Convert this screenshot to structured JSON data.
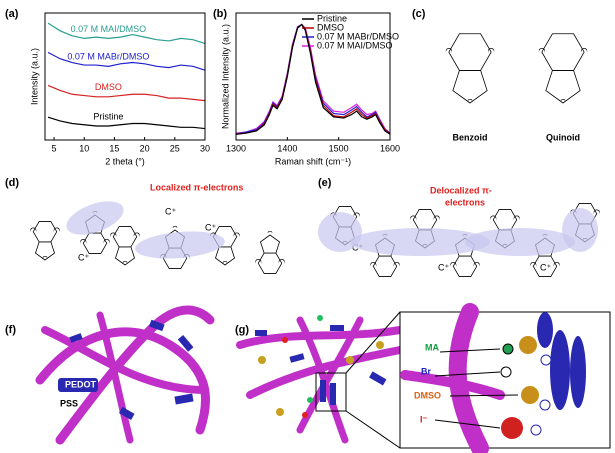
{
  "panel_labels": [
    "(a)",
    "(b)",
    "(c)",
    "(d)",
    "(e)",
    "(f)",
    "(g)"
  ],
  "chart_data": [
    {
      "type": "line",
      "xlabel": "2 theta (°)",
      "ylabel": "Intensity (a.u.)",
      "xlim": [
        3.5,
        30
      ],
      "ylim": [
        0,
        10
      ],
      "xticks": [
        5,
        10,
        15,
        20,
        25,
        30
      ],
      "legend": "inline",
      "x": [
        4,
        6,
        8,
        10,
        12,
        14,
        16,
        18,
        20,
        22,
        24,
        26,
        28,
        30
      ],
      "series": [
        {
          "name": "Pristine",
          "color": "#000000",
          "values": [
            1.8,
            1.5,
            1.3,
            1.2,
            1.1,
            1.1,
            1.2,
            1.3,
            1.3,
            1.2,
            1.1,
            1.0,
            1.0,
            0.9
          ]
        },
        {
          "name": "DMSO",
          "color": "#d62020",
          "values": [
            4.3,
            3.9,
            3.6,
            3.5,
            3.4,
            3.4,
            3.5,
            3.6,
            3.6,
            3.5,
            3.3,
            3.3,
            3.2,
            3.1
          ]
        },
        {
          "name": "0.07 M MABr/DMSO",
          "color": "#2020d0",
          "values": [
            6.9,
            6.4,
            6.1,
            5.9,
            5.9,
            5.8,
            6.0,
            6.1,
            6.0,
            5.8,
            5.7,
            5.9,
            5.8,
            5.5
          ]
        },
        {
          "name": "0.07 M MAI/DMSO",
          "color": "#2a9d8f",
          "values": [
            9.2,
            8.6,
            8.2,
            8.0,
            8.1,
            8.0,
            8.1,
            8.3,
            8.1,
            7.9,
            7.8,
            8.0,
            7.9,
            7.6
          ]
        }
      ]
    },
    {
      "type": "line",
      "xlabel": "Raman shift (cm⁻¹)",
      "ylabel": "Normalized Intensity (a.u.)",
      "xlim": [
        1300,
        1600
      ],
      "ylim": [
        0,
        1.1
      ],
      "xticks": [
        1300,
        1400,
        1500,
        1600
      ],
      "legend": "upper right",
      "x": [
        1300,
        1320,
        1340,
        1355,
        1365,
        1372,
        1380,
        1390,
        1400,
        1410,
        1420,
        1428,
        1435,
        1445,
        1455,
        1470,
        1490,
        1510,
        1525,
        1535,
        1545,
        1555,
        1565,
        1572,
        1580,
        1590,
        1600
      ],
      "series": [
        {
          "name": "Pristine",
          "color": "#000000",
          "values": [
            0.05,
            0.06,
            0.08,
            0.13,
            0.22,
            0.3,
            0.27,
            0.35,
            0.55,
            0.8,
            0.97,
            1.0,
            0.95,
            0.75,
            0.5,
            0.28,
            0.2,
            0.19,
            0.22,
            0.25,
            0.2,
            0.18,
            0.2,
            0.22,
            0.15,
            0.08,
            0.05
          ]
        },
        {
          "name": "DMSO",
          "color": "#c00000",
          "values": [
            0.05,
            0.06,
            0.08,
            0.14,
            0.23,
            0.31,
            0.28,
            0.36,
            0.56,
            0.81,
            0.97,
            1.0,
            0.96,
            0.77,
            0.52,
            0.3,
            0.21,
            0.2,
            0.24,
            0.27,
            0.22,
            0.19,
            0.21,
            0.23,
            0.16,
            0.09,
            0.05
          ]
        },
        {
          "name": "0.07 M MABr/DMSO",
          "color": "#2020d0",
          "values": [
            0.05,
            0.07,
            0.09,
            0.15,
            0.24,
            0.32,
            0.29,
            0.37,
            0.57,
            0.82,
            0.98,
            1.0,
            0.96,
            0.78,
            0.54,
            0.32,
            0.23,
            0.22,
            0.26,
            0.29,
            0.24,
            0.2,
            0.22,
            0.24,
            0.17,
            0.09,
            0.06
          ]
        },
        {
          "name": "0.07 M MAI/DMSO",
          "color": "#e020e0",
          "values": [
            0.06,
            0.07,
            0.1,
            0.16,
            0.25,
            0.33,
            0.3,
            0.38,
            0.58,
            0.83,
            0.98,
            1.0,
            0.97,
            0.8,
            0.56,
            0.34,
            0.25,
            0.24,
            0.28,
            0.31,
            0.26,
            0.22,
            0.23,
            0.25,
            0.18,
            0.1,
            0.06
          ]
        }
      ]
    }
  ],
  "structures": {
    "benzoid": "Benzoid",
    "quinoid": "Quinoid"
  },
  "atoms": {
    "sulfur": "S",
    "oxygen": "O",
    "cation": "C⁺"
  },
  "annotations": {
    "localized": "Localized π-electrons",
    "delocalized": [
      "Delocalized π-",
      "electrons"
    ]
  },
  "model_f": {
    "pedot": "PEDOT",
    "pss": "PSS"
  },
  "model_g": {
    "ma": "MA",
    "br": "Br",
    "dmso": "DMSO",
    "iodide": "I⁻"
  }
}
